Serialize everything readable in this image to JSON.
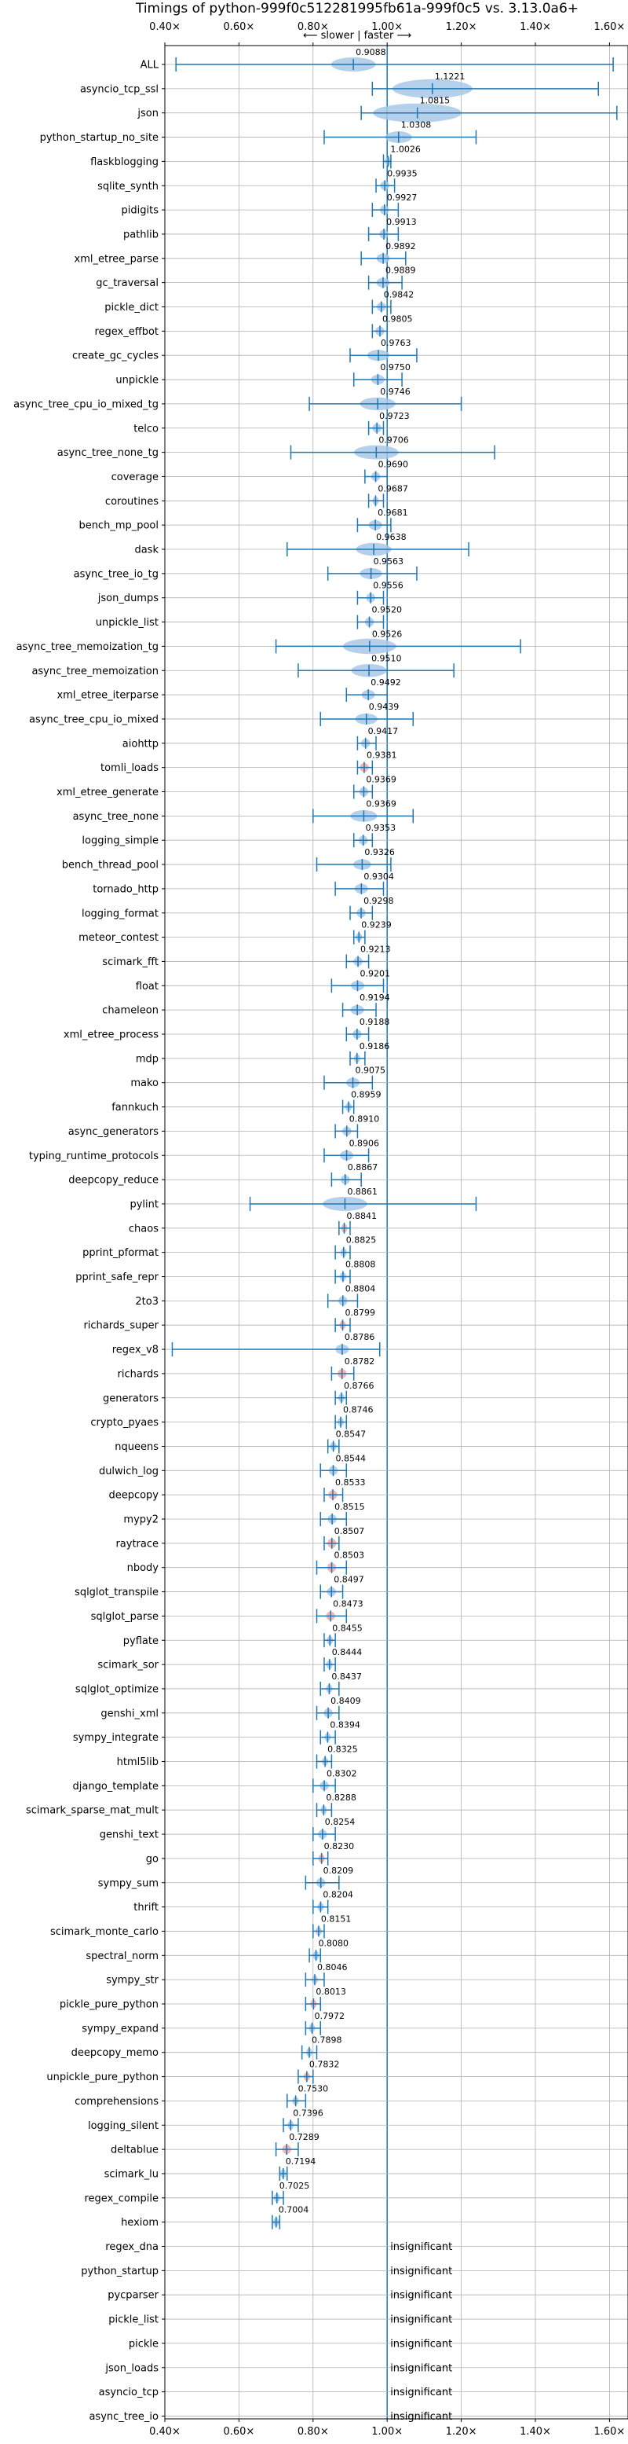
{
  "chart_data": {
    "type": "violin",
    "title": "Timings of python-999f0c512281995fb61a-999f0c5 vs. 3.13.0a6+",
    "subtitle": "⟵ slower | faster ⟶",
    "xlim": [
      0.4,
      1.65
    ],
    "xticks": [
      "0.40×",
      "0.60×",
      "0.80×",
      "1.00×",
      "1.20×",
      "1.40×",
      "1.60×"
    ],
    "xtick_values": [
      0.4,
      0.6,
      0.8,
      1.0,
      1.2,
      1.4,
      1.6
    ],
    "reference_line": 1.0,
    "grid": true,
    "colors": {
      "violin": "#a8c8e8",
      "line": "#1f77b4",
      "highlight": "#f4a8a8",
      "grid": "#b0b0b0"
    },
    "insignificant_label": "insignificant",
    "benchmarks": [
      {
        "name": "ALL",
        "value": 0.9088,
        "label": "0.9088",
        "min": 0.43,
        "max": 1.61,
        "spread": 0.1
      },
      {
        "name": "asyncio_tcp_ssl",
        "value": 1.1221,
        "label": "1.1221",
        "min": 0.96,
        "max": 1.57,
        "spread": 0.18
      },
      {
        "name": "json",
        "value": 1.0815,
        "label": "1.0815",
        "min": 0.93,
        "max": 1.62,
        "spread": 0.2
      },
      {
        "name": "python_startup_no_site",
        "value": 1.0308,
        "label": "1.0308",
        "min": 0.83,
        "max": 1.24,
        "spread": 0.06
      },
      {
        "name": "flaskblogging",
        "value": 1.0026,
        "label": "1.0026",
        "min": 0.99,
        "max": 1.01,
        "spread": 0.01
      },
      {
        "name": "sqlite_synth",
        "value": 0.9935,
        "label": "0.9935",
        "min": 0.97,
        "max": 1.02,
        "spread": 0.02
      },
      {
        "name": "pidigits",
        "value": 0.9927,
        "label": "0.9927",
        "min": 0.96,
        "max": 1.03,
        "spread": 0.02
      },
      {
        "name": "pathlib",
        "value": 0.9913,
        "label": "0.9913",
        "min": 0.95,
        "max": 1.03,
        "spread": 0.02
      },
      {
        "name": "xml_etree_parse",
        "value": 0.9892,
        "label": "0.9892",
        "min": 0.93,
        "max": 1.05,
        "spread": 0.03
      },
      {
        "name": "gc_traversal",
        "value": 0.9889,
        "label": "0.9889",
        "min": 0.95,
        "max": 1.04,
        "spread": 0.03
      },
      {
        "name": "pickle_dict",
        "value": 0.9842,
        "label": "0.9842",
        "min": 0.96,
        "max": 1.01,
        "spread": 0.02
      },
      {
        "name": "regex_effbot",
        "value": 0.9805,
        "label": "0.9805",
        "min": 0.96,
        "max": 1.0,
        "spread": 0.02
      },
      {
        "name": "create_gc_cycles",
        "value": 0.9763,
        "label": "0.9763",
        "min": 0.9,
        "max": 1.08,
        "spread": 0.05
      },
      {
        "name": "unpickle",
        "value": 0.975,
        "label": "0.9750",
        "min": 0.91,
        "max": 1.04,
        "spread": 0.03
      },
      {
        "name": "async_tree_cpu_io_mixed_tg",
        "value": 0.9746,
        "label": "0.9746",
        "min": 0.79,
        "max": 1.2,
        "spread": 0.08
      },
      {
        "name": "telco",
        "value": 0.9723,
        "label": "0.9723",
        "min": 0.95,
        "max": 0.99,
        "spread": 0.02
      },
      {
        "name": "async_tree_none_tg",
        "value": 0.9706,
        "label": "0.9706",
        "min": 0.74,
        "max": 1.29,
        "spread": 0.1
      },
      {
        "name": "coverage",
        "value": 0.969,
        "label": "0.9690",
        "min": 0.94,
        "max": 1.0,
        "spread": 0.02
      },
      {
        "name": "coroutines",
        "value": 0.9687,
        "label": "0.9687",
        "min": 0.95,
        "max": 0.99,
        "spread": 0.01
      },
      {
        "name": "bench_mp_pool",
        "value": 0.9681,
        "label": "0.9681",
        "min": 0.92,
        "max": 1.01,
        "spread": 0.03
      },
      {
        "name": "dask",
        "value": 0.9638,
        "label": "0.9638",
        "min": 0.73,
        "max": 1.22,
        "spread": 0.08
      },
      {
        "name": "async_tree_io_tg",
        "value": 0.9563,
        "label": "0.9563",
        "min": 0.84,
        "max": 1.08,
        "spread": 0.05
      },
      {
        "name": "json_dumps",
        "value": 0.9556,
        "label": "0.9556",
        "min": 0.92,
        "max": 0.99,
        "spread": 0.02
      },
      {
        "name": "unpickle_list",
        "value": 0.952,
        "label": "0.9520",
        "min": 0.92,
        "max": 0.99,
        "spread": 0.02
      },
      {
        "name": "async_tree_memoization_tg",
        "value": 0.9526,
        "label": "0.9526",
        "min": 0.7,
        "max": 1.36,
        "spread": 0.12
      },
      {
        "name": "async_tree_memoization",
        "value": 0.951,
        "label": "0.9510",
        "min": 0.76,
        "max": 1.18,
        "spread": 0.08
      },
      {
        "name": "xml_etree_iterparse",
        "value": 0.9492,
        "label": "0.9492",
        "min": 0.89,
        "max": 1.0,
        "spread": 0.03
      },
      {
        "name": "async_tree_cpu_io_mixed",
        "value": 0.9439,
        "label": "0.9439",
        "min": 0.82,
        "max": 1.07,
        "spread": 0.05
      },
      {
        "name": "aiohttp",
        "value": 0.9417,
        "label": "0.9417",
        "min": 0.92,
        "max": 0.97,
        "spread": 0.02
      },
      {
        "name": "tomli_loads",
        "value": 0.9381,
        "label": "0.9381",
        "min": 0.92,
        "max": 0.96,
        "spread": 0.02,
        "highlight": true
      },
      {
        "name": "xml_etree_generate",
        "value": 0.9369,
        "label": "0.9369",
        "min": 0.91,
        "max": 0.96,
        "spread": 0.02
      },
      {
        "name": "async_tree_none",
        "value": 0.9369,
        "label": "0.9369",
        "min": 0.8,
        "max": 1.07,
        "spread": 0.06
      },
      {
        "name": "logging_simple",
        "value": 0.9353,
        "label": "0.9353",
        "min": 0.91,
        "max": 0.96,
        "spread": 0.02
      },
      {
        "name": "bench_thread_pool",
        "value": 0.9326,
        "label": "0.9326",
        "min": 0.81,
        "max": 1.01,
        "spread": 0.04
      },
      {
        "name": "tornado_http",
        "value": 0.9304,
        "label": "0.9304",
        "min": 0.86,
        "max": 0.99,
        "spread": 0.03
      },
      {
        "name": "logging_format",
        "value": 0.9298,
        "label": "0.9298",
        "min": 0.9,
        "max": 0.96,
        "spread": 0.02
      },
      {
        "name": "meteor_contest",
        "value": 0.9239,
        "label": "0.9239",
        "min": 0.91,
        "max": 0.94,
        "spread": 0.01
      },
      {
        "name": "scimark_fft",
        "value": 0.9213,
        "label": "0.9213",
        "min": 0.89,
        "max": 0.95,
        "spread": 0.02
      },
      {
        "name": "float",
        "value": 0.9201,
        "label": "0.9201",
        "min": 0.85,
        "max": 0.99,
        "spread": 0.03
      },
      {
        "name": "chameleon",
        "value": 0.9194,
        "label": "0.9194",
        "min": 0.88,
        "max": 0.97,
        "spread": 0.03
      },
      {
        "name": "xml_etree_process",
        "value": 0.9188,
        "label": "0.9188",
        "min": 0.89,
        "max": 0.95,
        "spread": 0.02
      },
      {
        "name": "mdp",
        "value": 0.9186,
        "label": "0.9186",
        "min": 0.9,
        "max": 0.94,
        "spread": 0.01
      },
      {
        "name": "mako",
        "value": 0.9075,
        "label": "0.9075",
        "min": 0.83,
        "max": 0.96,
        "spread": 0.03
      },
      {
        "name": "fannkuch",
        "value": 0.8959,
        "label": "0.8959",
        "min": 0.88,
        "max": 0.91,
        "spread": 0.01
      },
      {
        "name": "async_generators",
        "value": 0.891,
        "label": "0.8910",
        "min": 0.86,
        "max": 0.92,
        "spread": 0.02
      },
      {
        "name": "typing_runtime_protocols",
        "value": 0.8906,
        "label": "0.8906",
        "min": 0.83,
        "max": 0.95,
        "spread": 0.03
      },
      {
        "name": "deepcopy_reduce",
        "value": 0.8867,
        "label": "0.8867",
        "min": 0.85,
        "max": 0.93,
        "spread": 0.02
      },
      {
        "name": "pylint",
        "value": 0.8861,
        "label": "0.8861",
        "min": 0.63,
        "max": 1.24,
        "spread": 0.1
      },
      {
        "name": "chaos",
        "value": 0.8841,
        "label": "0.8841",
        "min": 0.87,
        "max": 0.9,
        "spread": 0.01,
        "highlight": true
      },
      {
        "name": "pprint_pformat",
        "value": 0.8825,
        "label": "0.8825",
        "min": 0.86,
        "max": 0.9,
        "spread": 0.01
      },
      {
        "name": "pprint_safe_repr",
        "value": 0.8808,
        "label": "0.8808",
        "min": 0.86,
        "max": 0.9,
        "spread": 0.01
      },
      {
        "name": "2to3",
        "value": 0.8804,
        "label": "0.8804",
        "min": 0.84,
        "max": 0.92,
        "spread": 0.02
      },
      {
        "name": "richards_super",
        "value": 0.8799,
        "label": "0.8799",
        "min": 0.86,
        "max": 0.9,
        "spread": 0.01,
        "highlight": true
      },
      {
        "name": "regex_v8",
        "value": 0.8786,
        "label": "0.8786",
        "min": 0.42,
        "max": 0.98,
        "spread": 0.03
      },
      {
        "name": "richards",
        "value": 0.8782,
        "label": "0.8782",
        "min": 0.85,
        "max": 0.91,
        "spread": 0.02,
        "highlight": true
      },
      {
        "name": "generators",
        "value": 0.8766,
        "label": "0.8766",
        "min": 0.86,
        "max": 0.89,
        "spread": 0.01
      },
      {
        "name": "crypto_pyaes",
        "value": 0.8746,
        "label": "0.8746",
        "min": 0.86,
        "max": 0.89,
        "spread": 0.01
      },
      {
        "name": "nqueens",
        "value": 0.8547,
        "label": "0.8547",
        "min": 0.84,
        "max": 0.87,
        "spread": 0.01
      },
      {
        "name": "dulwich_log",
        "value": 0.8544,
        "label": "0.8544",
        "min": 0.82,
        "max": 0.89,
        "spread": 0.02
      },
      {
        "name": "deepcopy",
        "value": 0.8533,
        "label": "0.8533",
        "min": 0.83,
        "max": 0.88,
        "spread": 0.02,
        "highlight": true
      },
      {
        "name": "mypy2",
        "value": 0.8515,
        "label": "0.8515",
        "min": 0.82,
        "max": 0.89,
        "spread": 0.02
      },
      {
        "name": "raytrace",
        "value": 0.8507,
        "label": "0.8507",
        "min": 0.83,
        "max": 0.87,
        "spread": 0.02,
        "highlight": true
      },
      {
        "name": "nbody",
        "value": 0.8503,
        "label": "0.8503",
        "min": 0.81,
        "max": 0.89,
        "spread": 0.02,
        "highlight": true
      },
      {
        "name": "sqlglot_transpile",
        "value": 0.8497,
        "label": "0.8497",
        "min": 0.82,
        "max": 0.88,
        "spread": 0.02
      },
      {
        "name": "sqlglot_parse",
        "value": 0.8473,
        "label": "0.8473",
        "min": 0.81,
        "max": 0.89,
        "spread": 0.02,
        "highlight": true
      },
      {
        "name": "pyflate",
        "value": 0.8455,
        "label": "0.8455",
        "min": 0.83,
        "max": 0.86,
        "spread": 0.01
      },
      {
        "name": "scimark_sor",
        "value": 0.8444,
        "label": "0.8444",
        "min": 0.83,
        "max": 0.86,
        "spread": 0.01
      },
      {
        "name": "sqlglot_optimize",
        "value": 0.8437,
        "label": "0.8437",
        "min": 0.82,
        "max": 0.87,
        "spread": 0.01
      },
      {
        "name": "genshi_xml",
        "value": 0.8409,
        "label": "0.8409",
        "min": 0.81,
        "max": 0.87,
        "spread": 0.02
      },
      {
        "name": "sympy_integrate",
        "value": 0.8394,
        "label": "0.8394",
        "min": 0.82,
        "max": 0.86,
        "spread": 0.01
      },
      {
        "name": "html5lib",
        "value": 0.8325,
        "label": "0.8325",
        "min": 0.81,
        "max": 0.85,
        "spread": 0.01
      },
      {
        "name": "django_template",
        "value": 0.8302,
        "label": "0.8302",
        "min": 0.8,
        "max": 0.86,
        "spread": 0.02
      },
      {
        "name": "scimark_sparse_mat_mult",
        "value": 0.8288,
        "label": "0.8288",
        "min": 0.81,
        "max": 0.85,
        "spread": 0.01
      },
      {
        "name": "genshi_text",
        "value": 0.8254,
        "label": "0.8254",
        "min": 0.8,
        "max": 0.86,
        "spread": 0.02
      },
      {
        "name": "go",
        "value": 0.823,
        "label": "0.8230",
        "min": 0.8,
        "max": 0.84,
        "spread": 0.01,
        "highlight": true
      },
      {
        "name": "sympy_sum",
        "value": 0.8209,
        "label": "0.8209",
        "min": 0.78,
        "max": 0.87,
        "spread": 0.02
      },
      {
        "name": "thrift",
        "value": 0.8204,
        "label": "0.8204",
        "min": 0.8,
        "max": 0.84,
        "spread": 0.01
      },
      {
        "name": "scimark_monte_carlo",
        "value": 0.8151,
        "label": "0.8151",
        "min": 0.8,
        "max": 0.83,
        "spread": 0.01
      },
      {
        "name": "spectral_norm",
        "value": 0.808,
        "label": "0.8080",
        "min": 0.79,
        "max": 0.82,
        "spread": 0.01
      },
      {
        "name": "sympy_str",
        "value": 0.8046,
        "label": "0.8046",
        "min": 0.78,
        "max": 0.83,
        "spread": 0.01
      },
      {
        "name": "pickle_pure_python",
        "value": 0.8013,
        "label": "0.8013",
        "min": 0.78,
        "max": 0.82,
        "spread": 0.01,
        "highlight": true
      },
      {
        "name": "sympy_expand",
        "value": 0.7972,
        "label": "0.7972",
        "min": 0.78,
        "max": 0.82,
        "spread": 0.01
      },
      {
        "name": "deepcopy_memo",
        "value": 0.7898,
        "label": "0.7898",
        "min": 0.77,
        "max": 0.81,
        "spread": 0.01
      },
      {
        "name": "unpickle_pure_python",
        "value": 0.7832,
        "label": "0.7832",
        "min": 0.76,
        "max": 0.8,
        "spread": 0.01,
        "highlight": true
      },
      {
        "name": "comprehensions",
        "value": 0.753,
        "label": "0.7530",
        "min": 0.73,
        "max": 0.78,
        "spread": 0.01
      },
      {
        "name": "logging_silent",
        "value": 0.7396,
        "label": "0.7396",
        "min": 0.72,
        "max": 0.76,
        "spread": 0.01
      },
      {
        "name": "deltablue",
        "value": 0.7289,
        "label": "0.7289",
        "min": 0.7,
        "max": 0.76,
        "spread": 0.02,
        "highlight": true
      },
      {
        "name": "scimark_lu",
        "value": 0.7194,
        "label": "0.7194",
        "min": 0.71,
        "max": 0.73,
        "spread": 0.01
      },
      {
        "name": "regex_compile",
        "value": 0.7025,
        "label": "0.7025",
        "min": 0.69,
        "max": 0.72,
        "spread": 0.01
      },
      {
        "name": "hexiom",
        "value": 0.7004,
        "label": "0.7004",
        "min": 0.69,
        "max": 0.71,
        "spread": 0.01
      },
      {
        "name": "regex_dna",
        "insignificant": true
      },
      {
        "name": "python_startup",
        "insignificant": true
      },
      {
        "name": "pycparser",
        "insignificant": true
      },
      {
        "name": "pickle_list",
        "insignificant": true
      },
      {
        "name": "pickle",
        "insignificant": true
      },
      {
        "name": "json_loads",
        "insignificant": true
      },
      {
        "name": "asyncio_tcp",
        "insignificant": true
      },
      {
        "name": "async_tree_io",
        "insignificant": true
      }
    ]
  }
}
